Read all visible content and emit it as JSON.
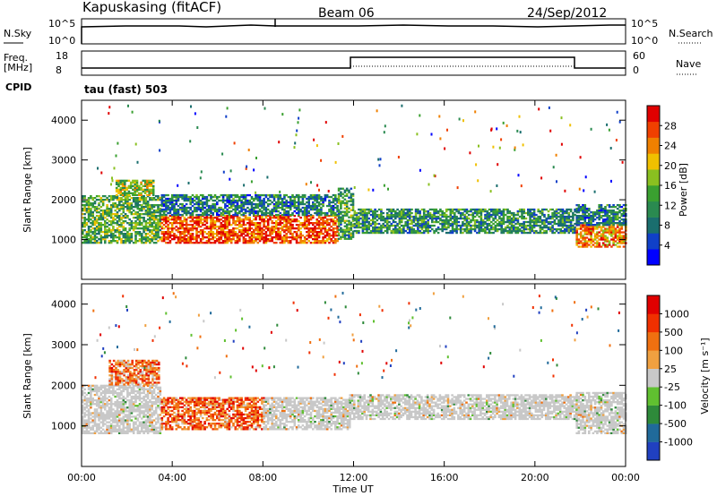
{
  "header": {
    "station": "Kapuskasing (fitACF)",
    "beam": "Beam 06",
    "date": "24/Sep/2012"
  },
  "top_panels": {
    "nsky_label": "N.Sky",
    "nsky_ticks": [
      "10^5",
      "10^0"
    ],
    "nsearch_label": "N.Search",
    "nsearch_ticks": [
      "10^5",
      "10^0"
    ],
    "freq_label_1": "Freq.",
    "freq_label_2": "[MHz]",
    "freq_ticks": [
      "18",
      "8"
    ],
    "nave_label": "Nave",
    "nave_ticks": [
      "60",
      "0"
    ],
    "cpid_label": "CPID",
    "cpid_text": "tau (fast) 503"
  },
  "x_axis": {
    "label": "Time UT",
    "ticks": [
      "00:00",
      "04:00",
      "08:00",
      "12:00",
      "16:00",
      "20:00",
      "00:00"
    ]
  },
  "chart_data": [
    {
      "type": "heatmap",
      "ylabel": "Slant Range [km]",
      "yticks": [
        "1000",
        "2000",
        "3000",
        "4000"
      ],
      "ylim": [
        0,
        4500
      ],
      "xlim_hours": [
        0,
        24
      ],
      "colorbar_label": "Power [dB]",
      "colorbar_ticks": [
        "4",
        "8",
        "12",
        "16",
        "20",
        "24",
        "28"
      ],
      "colors": [
        "#0000ff",
        "#1040c8",
        "#1a6e6e",
        "#2a8a50",
        "#3aa030",
        "#8ac020",
        "#f0c000",
        "#f08000",
        "#f04000",
        "#e00000"
      ],
      "bands": [
        {
          "t0": 0.0,
          "t1": 3.5,
          "r0": 900,
          "r1": 2100,
          "v": 0.45
        },
        {
          "t0": 3.5,
          "t1": 11.3,
          "r0": 900,
          "r1": 1600,
          "v": 0.85
        },
        {
          "t0": 3.5,
          "t1": 11.3,
          "r0": 1600,
          "r1": 2100,
          "v": 0.3
        },
        {
          "t0": 11.3,
          "t1": 12.0,
          "r0": 1000,
          "r1": 2300,
          "v": 0.4
        },
        {
          "t0": 12.0,
          "t1": 21.8,
          "r0": 1150,
          "r1": 1750,
          "v": 0.35
        },
        {
          "t0": 21.8,
          "t1": 24.0,
          "r0": 800,
          "r1": 1350,
          "v": 0.75
        },
        {
          "t0": 21.8,
          "t1": 24.0,
          "r0": 1350,
          "r1": 1850,
          "v": 0.3
        },
        {
          "t0": 1.5,
          "t1": 3.2,
          "r0": 2100,
          "r1": 2500,
          "v": 0.55
        }
      ]
    },
    {
      "type": "heatmap",
      "ylabel": "Slant Range [km]",
      "yticks": [
        "1000",
        "2000",
        "3000",
        "4000"
      ],
      "ylim": [
        0,
        4500
      ],
      "xlim_hours": [
        0,
        24
      ],
      "colorbar_label": "Velocity [m s⁻¹]",
      "colorbar_ticks": [
        "1000",
        "500",
        "100",
        "25",
        "-25",
        "-100",
        "-500",
        "-1000"
      ],
      "colors": [
        "#2040c0",
        "#206a9a",
        "#2e8a3a",
        "#60c030",
        "#c8c8c8",
        "#f0a040",
        "#f07010",
        "#f03000",
        "#e00000"
      ],
      "bands": [
        {
          "t0": 0.0,
          "t1": 3.5,
          "r0": 800,
          "r1": 2000,
          "v": 0.5
        },
        {
          "t0": 1.2,
          "t1": 3.4,
          "r0": 2000,
          "r1": 2600,
          "v": 0.7
        },
        {
          "t0": 3.5,
          "t1": 8.0,
          "r0": 900,
          "r1": 1700,
          "v": 0.75
        },
        {
          "t0": 8.0,
          "t1": 11.8,
          "r0": 900,
          "r1": 1700,
          "v": 0.5
        },
        {
          "t0": 11.8,
          "t1": 21.8,
          "r0": 1150,
          "r1": 1750,
          "v": 0.5
        },
        {
          "t0": 21.8,
          "t1": 24.0,
          "r0": 800,
          "r1": 1800,
          "v": 0.5
        }
      ]
    }
  ]
}
